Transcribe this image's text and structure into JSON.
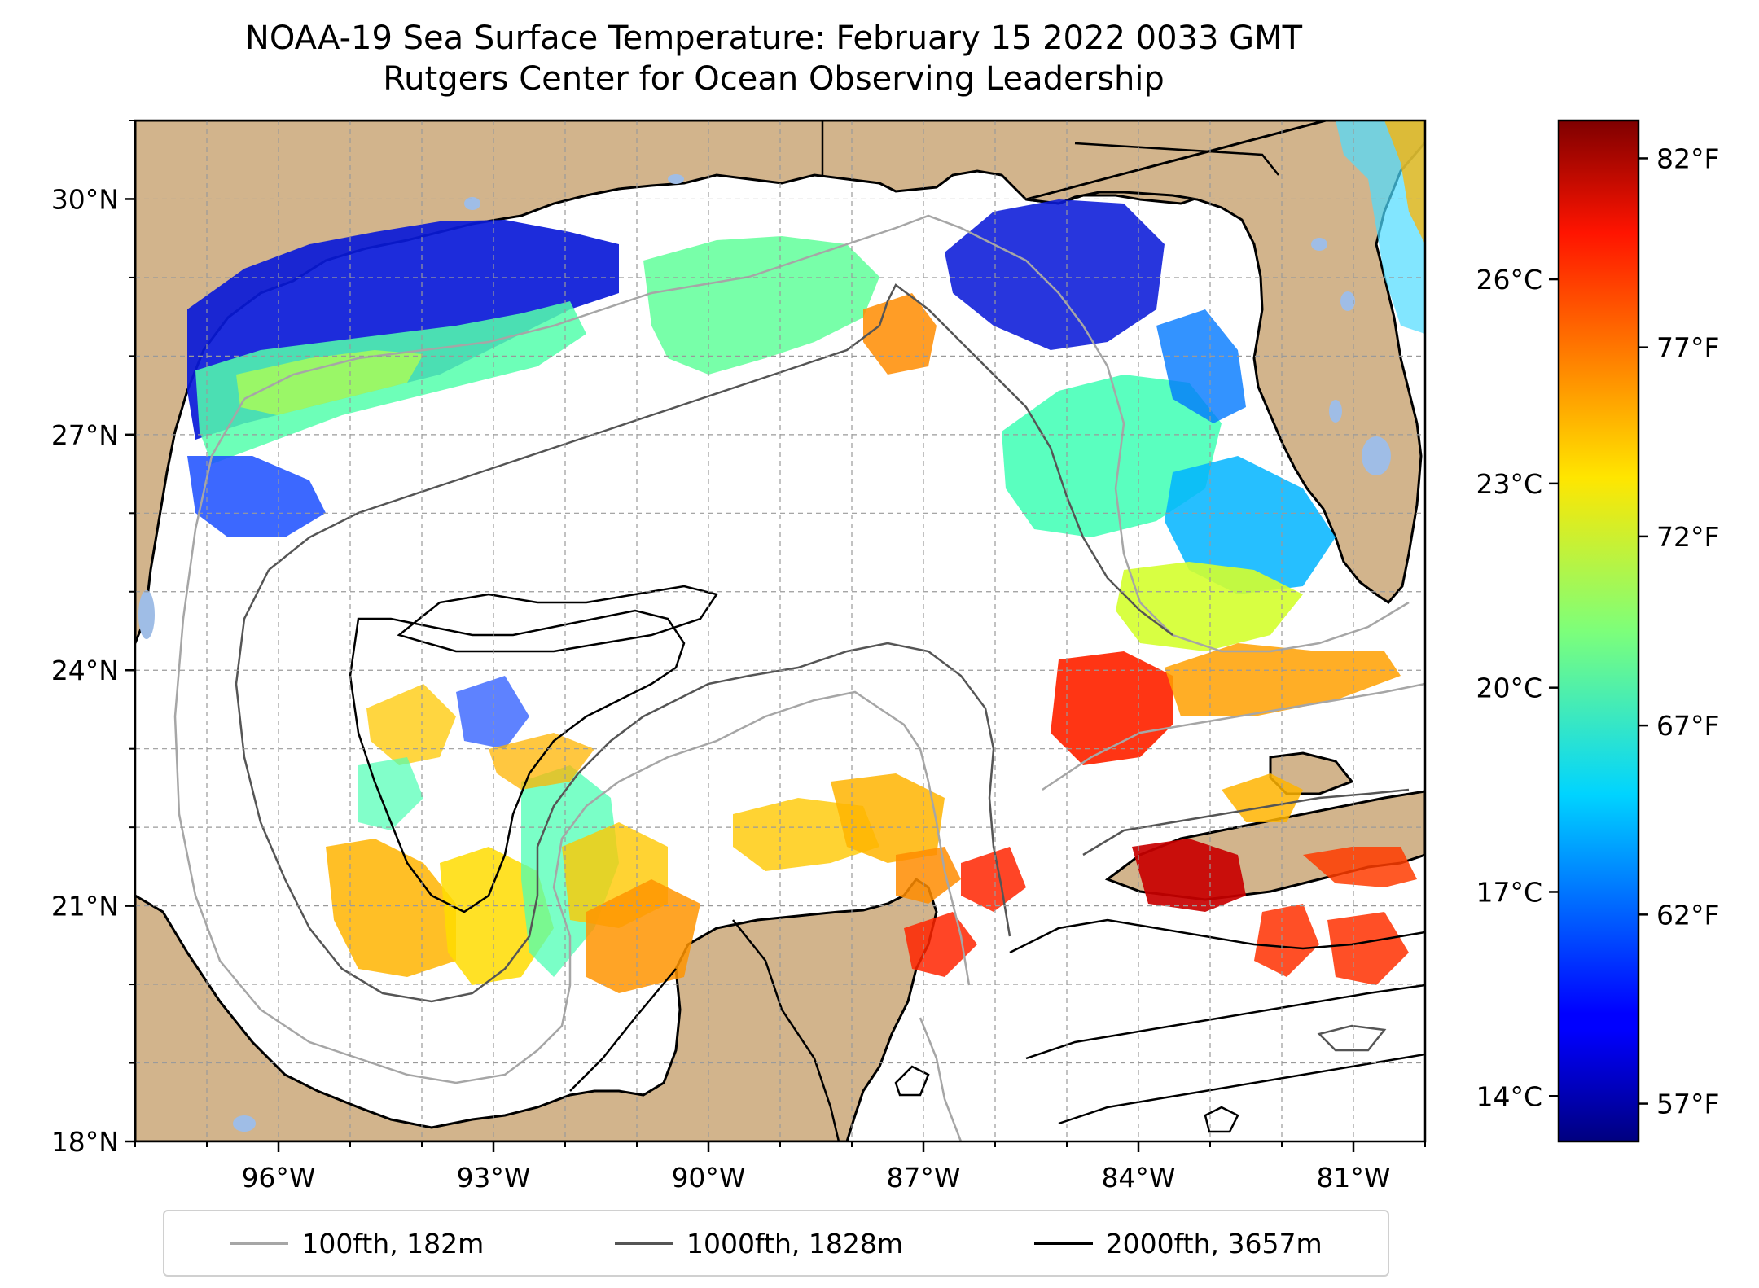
{
  "title": {
    "line1": "NOAA-19 Sea Surface Temperature: February 15 2022 0033 GMT",
    "line2": "Rutgers Center for Ocean Observing Leadership"
  },
  "map": {
    "lon_range": [
      -98.0,
      -80.0
    ],
    "lat_range": [
      18.0,
      31.0
    ],
    "lon_ticks": [
      {
        "value": -96,
        "label": "96°W"
      },
      {
        "value": -93,
        "label": "93°W"
      },
      {
        "value": -90,
        "label": "90°W"
      },
      {
        "value": -87,
        "label": "87°W"
      },
      {
        "value": -84,
        "label": "84°W"
      },
      {
        "value": -81,
        "label": "81°W"
      }
    ],
    "lat_ticks": [
      {
        "value": 18,
        "label": "18°N"
      },
      {
        "value": 21,
        "label": "21°N"
      },
      {
        "value": 24,
        "label": "24°N"
      },
      {
        "value": 27,
        "label": "27°N"
      },
      {
        "value": 30,
        "label": "30°N"
      }
    ],
    "gridlines": true,
    "land_color": "#d2b48c",
    "ocean_color": "#ffffff",
    "inland_water_color": "#9fbde6"
  },
  "colorbar": {
    "cmap": "jet",
    "celsius_ticks": [
      {
        "value": 14,
        "label": "14°C"
      },
      {
        "value": 17,
        "label": "17°C"
      },
      {
        "value": 20,
        "label": "20°C"
      },
      {
        "value": 23,
        "label": "23°C"
      },
      {
        "value": 26,
        "label": "26°C"
      }
    ],
    "fahrenheit_ticks": [
      {
        "value": 57,
        "label": "57°F"
      },
      {
        "value": 62,
        "label": "62°F"
      },
      {
        "value": 67,
        "label": "67°F"
      },
      {
        "value": 72,
        "label": "72°F"
      },
      {
        "value": 77,
        "label": "77°F"
      },
      {
        "value": 82,
        "label": "82°F"
      }
    ],
    "range_f": [
      56,
      83
    ]
  },
  "legend": {
    "entries": [
      {
        "label": "100fth, 182m",
        "color": "#a6a6a6"
      },
      {
        "label": "1000fth, 1828m",
        "color": "#555555"
      },
      {
        "label": "2000fth, 3657m",
        "color": "#000000"
      }
    ]
  }
}
